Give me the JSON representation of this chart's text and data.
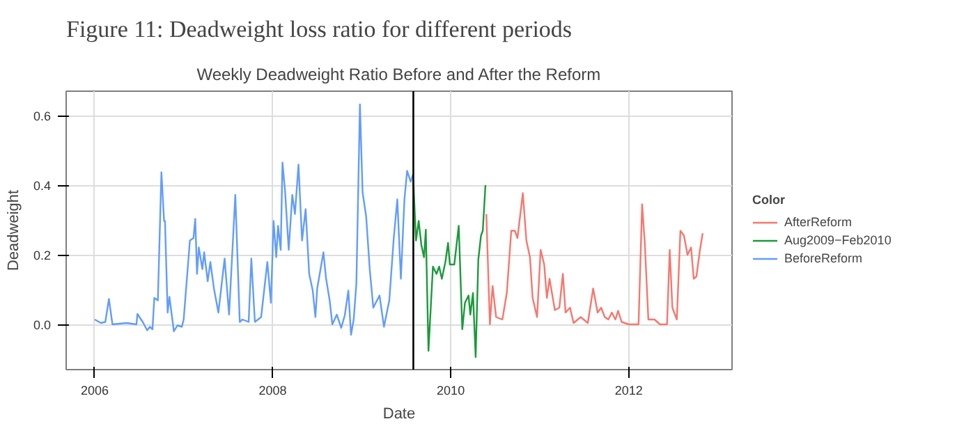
{
  "chart_data": {
    "type": "line",
    "title": "Figure 11: Deadweight loss ratio for different periods",
    "subtitle": "Weekly Deadweight Ratio Before and After the Reform",
    "xlabel": "Date",
    "ylabel": "Deadweight",
    "legend_title": "Color",
    "legend": "right",
    "grid": true,
    "line_style": "solid",
    "xlim": [
      2005.68,
      2013.16
    ],
    "xticks": [
      2006,
      2008,
      2010,
      2012
    ],
    "ylim": [
      -0.13,
      0.67
    ],
    "yticks": [
      {
        "value": 0,
        "label": "0.0"
      },
      0.2,
      0.4,
      0.6
    ],
    "ref_lines": [
      {
        "axis": "x",
        "value": 2009.58,
        "color": "#000000"
      }
    ],
    "series": [
      {
        "name": "AfterReform",
        "color": "#f8766d",
        "x": [
          2010.4,
          2010.44,
          2010.47,
          2010.51,
          2010.58,
          2010.63,
          2010.68,
          2010.72,
          2010.75,
          2010.81,
          2010.85,
          2010.89,
          2010.92,
          2010.97,
          2011.01,
          2011.05,
          2011.08,
          2011.11,
          2011.17,
          2011.22,
          2011.26,
          2011.29,
          2011.34,
          2011.38,
          2011.46,
          2011.54,
          2011.6,
          2011.65,
          2011.69,
          2011.73,
          2011.77,
          2011.81,
          2011.85,
          2011.88,
          2011.92,
          2012.0,
          2012.11,
          2012.15,
          2012.18,
          2012.22,
          2012.29,
          2012.35,
          2012.43,
          2012.46,
          2012.49,
          2012.54,
          2012.58,
          2012.62,
          2012.66,
          2012.7,
          2012.73,
          2012.76,
          2012.8,
          2012.83
        ],
        "values": [
          0.317,
          0,
          0.11,
          0.021,
          0.014,
          0.09,
          0.269,
          0.269,
          0.248,
          0.377,
          0.241,
          0.193,
          0.076,
          0.021,
          0.214,
          0.172,
          0.076,
          0.131,
          0.041,
          0.048,
          0.145,
          0.034,
          0.048,
          0.004,
          0.021,
          0.004,
          0.103,
          0.034,
          0.048,
          0.021,
          0.014,
          0.034,
          0.014,
          0.039,
          0.007,
          0,
          0,
          0.345,
          0.234,
          0.014,
          0.014,
          0,
          0,
          0.214,
          0.048,
          0.014,
          0.269,
          0.255,
          0.2,
          0.221,
          0.131,
          0.138,
          0.214,
          0.262
        ]
      },
      {
        "name": "Aug2009−Feb2010",
        "color": "#1a9a3a",
        "x": [
          2009.58,
          2009.61,
          2009.64,
          2009.67,
          2009.7,
          2009.72,
          2009.75,
          2009.8,
          2009.84,
          2009.87,
          2009.9,
          2009.94,
          2009.97,
          2009.99,
          2010.04,
          2010.09,
          2010.13,
          2010.16,
          2010.2,
          2010.22,
          2010.25,
          2010.28,
          2010.31,
          2010.34,
          2010.36,
          2010.39
        ],
        "values": [
          0.414,
          0.241,
          0.297,
          0.228,
          0.193,
          0.272,
          -0.076,
          0.166,
          0.145,
          0.166,
          0.131,
          0.179,
          0.234,
          0.172,
          0.172,
          0.283,
          -0.014,
          0.062,
          0.083,
          0.028,
          0.09,
          -0.094,
          0.186,
          0.255,
          0.269,
          0.4
        ]
      },
      {
        "name": "BeforeReform",
        "color": "#619cff",
        "x": [
          2006.0,
          2006.07,
          2006.12,
          2006.16,
          2006.2,
          2006.36,
          2006.47,
          2006.48,
          2006.54,
          2006.59,
          2006.62,
          2006.65,
          2006.67,
          2006.71,
          2006.75,
          2006.78,
          2006.79,
          2006.82,
          2006.84,
          2006.89,
          2006.93,
          2006.98,
          2007.0,
          2007.07,
          2007.11,
          2007.13,
          2007.15,
          2007.17,
          2007.21,
          2007.23,
          2007.27,
          2007.3,
          2007.34,
          2007.39,
          2007.46,
          2007.51,
          2007.58,
          2007.63,
          2007.66,
          2007.73,
          2007.76,
          2007.8,
          2007.87,
          2007.94,
          2007.98,
          2008.01,
          2008.04,
          2008.06,
          2008.09,
          2008.11,
          2008.14,
          2008.18,
          2008.22,
          2008.25,
          2008.29,
          2008.33,
          2008.37,
          2008.41,
          2008.45,
          2008.48,
          2008.5,
          2008.57,
          2008.6,
          2008.64,
          2008.67,
          2008.72,
          2008.77,
          2008.81,
          2008.85,
          2008.88,
          2008.91,
          2008.94,
          2008.98,
          2009.01,
          2009.05,
          2009.09,
          2009.13,
          2009.2,
          2009.25,
          2009.31,
          2009.36,
          2009.4,
          2009.44,
          2009.48,
          2009.51,
          2009.55,
          2009.58
        ],
        "values": [
          0.014,
          0.004,
          0.007,
          0.073,
          0,
          0.004,
          0,
          0.03,
          0.007,
          -0.017,
          -0.007,
          -0.014,
          0.076,
          0.069,
          0.437,
          0.297,
          0.297,
          0.034,
          0.079,
          -0.02,
          -0.003,
          -0.007,
          0.014,
          0.241,
          0.248,
          0.303,
          0.145,
          0.221,
          0.159,
          0.207,
          0.124,
          0.179,
          0.103,
          0.034,
          0.189,
          0.028,
          0.372,
          0.007,
          0.014,
          0.007,
          0.189,
          0.007,
          0.021,
          0.179,
          0.062,
          0.297,
          0.193,
          0.283,
          0.214,
          0.465,
          0.379,
          0.214,
          0.372,
          0.317,
          0.459,
          0.241,
          0.331,
          0.145,
          0.097,
          0.021,
          0.103,
          0.207,
          0.131,
          0.069,
          0,
          0.028,
          -0.01,
          0.026,
          0.097,
          -0.03,
          0.014,
          0.117,
          0.632,
          0.379,
          0.31,
          0.159,
          0.048,
          0.083,
          -0.007,
          0.069,
          0.248,
          0.359,
          0.131,
          0.359,
          0.441,
          0.41,
          0.434
        ]
      }
    ]
  }
}
